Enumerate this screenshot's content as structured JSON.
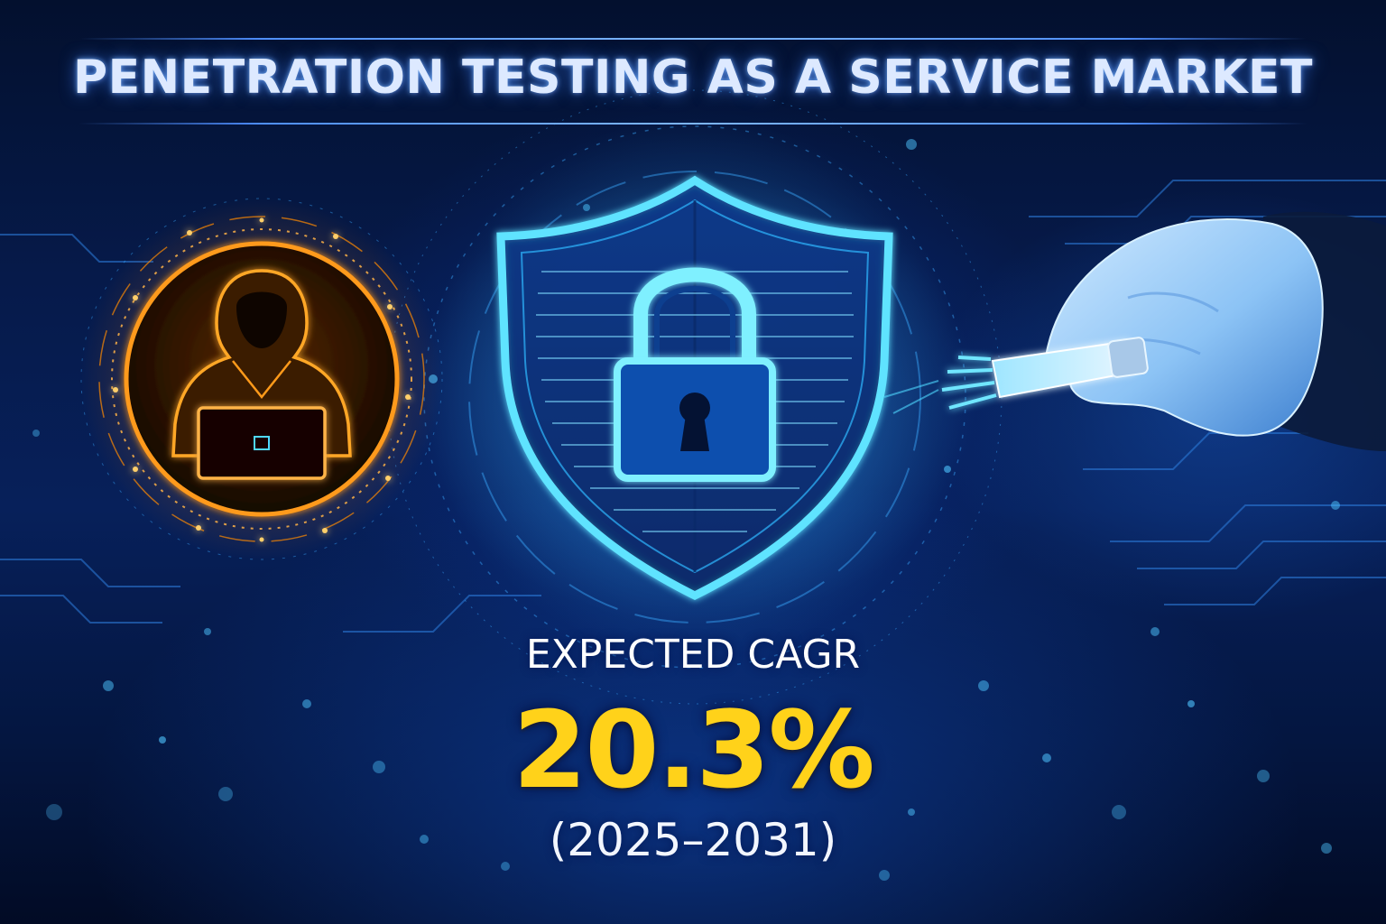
{
  "header": {
    "title": "PENETRATION TESTING AS A SERVICE MARKET"
  },
  "stat": {
    "label": "EXPECTED CAGR",
    "value": "20.3%",
    "period": "(2025–2031)"
  },
  "illustrations": {
    "left": "hacker-icon",
    "center": "shield-lock-icon",
    "right": "gloved-hand-probe-icon"
  },
  "colors": {
    "background": "#061a4a",
    "title": "#dde9ff",
    "accent_blue": "#4fd8ff",
    "hacker_orange": "#ff9a1a",
    "value_yellow": "#ffd21a"
  }
}
